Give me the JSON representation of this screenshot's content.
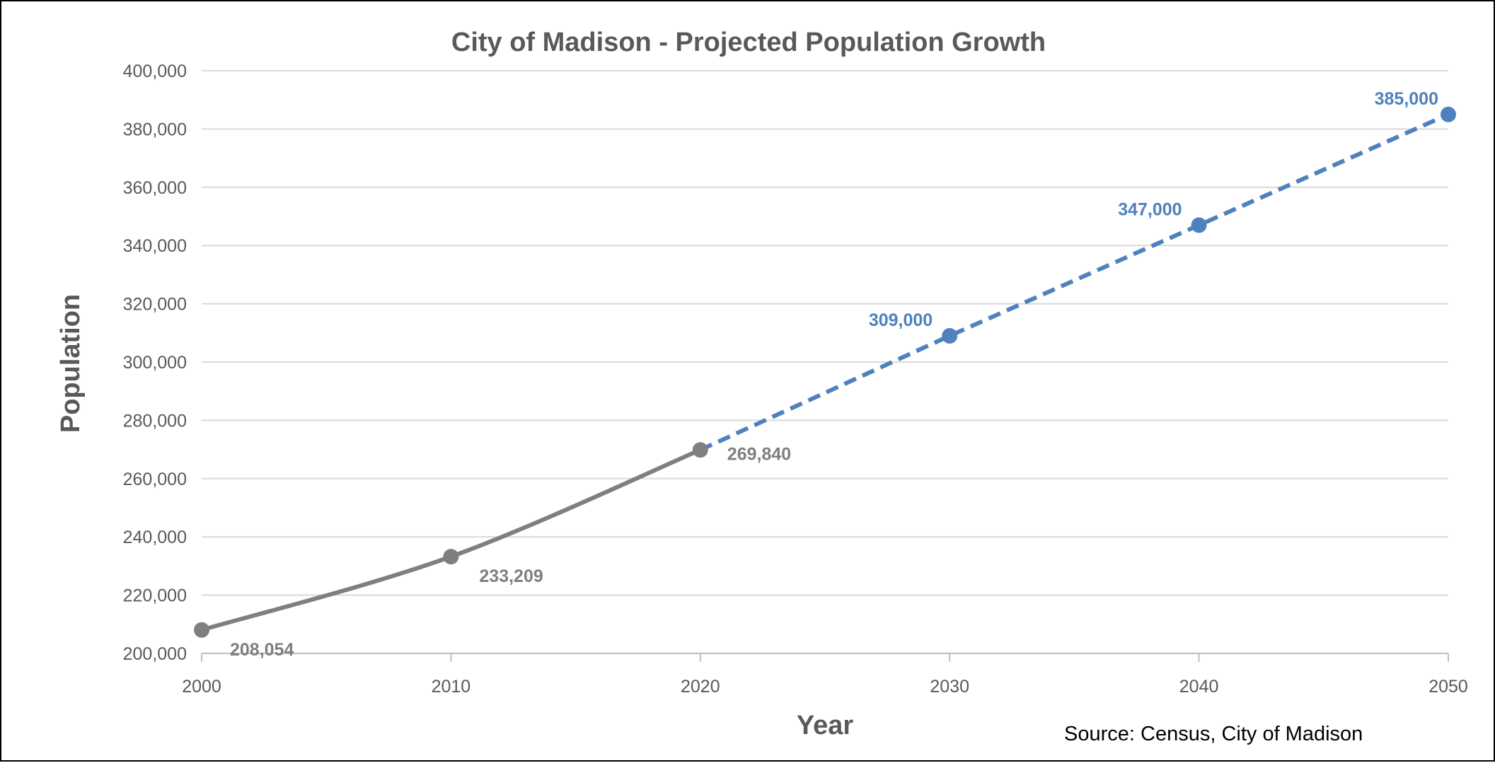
{
  "chart_data": {
    "type": "line",
    "title": "City of Madison - Projected Population Growth",
    "xlabel": "Year",
    "ylabel": "Population",
    "source": "Source:  Census, City of Madison",
    "x_ticks": [
      "2000",
      "2010",
      "2020",
      "2030",
      "2040",
      "2050"
    ],
    "y_ticks": [
      "200,000",
      "220,000",
      "240,000",
      "260,000",
      "280,000",
      "300,000",
      "320,000",
      "340,000",
      "360,000",
      "380,000",
      "400,000"
    ],
    "xlim": [
      2000,
      2050
    ],
    "ylim": [
      200000,
      400000
    ],
    "grid": true,
    "series": [
      {
        "style": "solid",
        "color": "#7f7f7f",
        "x": [
          2000,
          2010,
          2020
        ],
        "y": [
          208054,
          233209,
          269840
        ],
        "labels": [
          "208,054",
          "233,209",
          "269,840"
        ]
      },
      {
        "style": "dashed",
        "color": "#4f81bd",
        "x": [
          2020,
          2030,
          2040,
          2050
        ],
        "y": [
          269840,
          309000,
          347000,
          385000
        ],
        "labels": [
          "",
          "309,000",
          "347,000",
          "385,000"
        ]
      }
    ]
  }
}
